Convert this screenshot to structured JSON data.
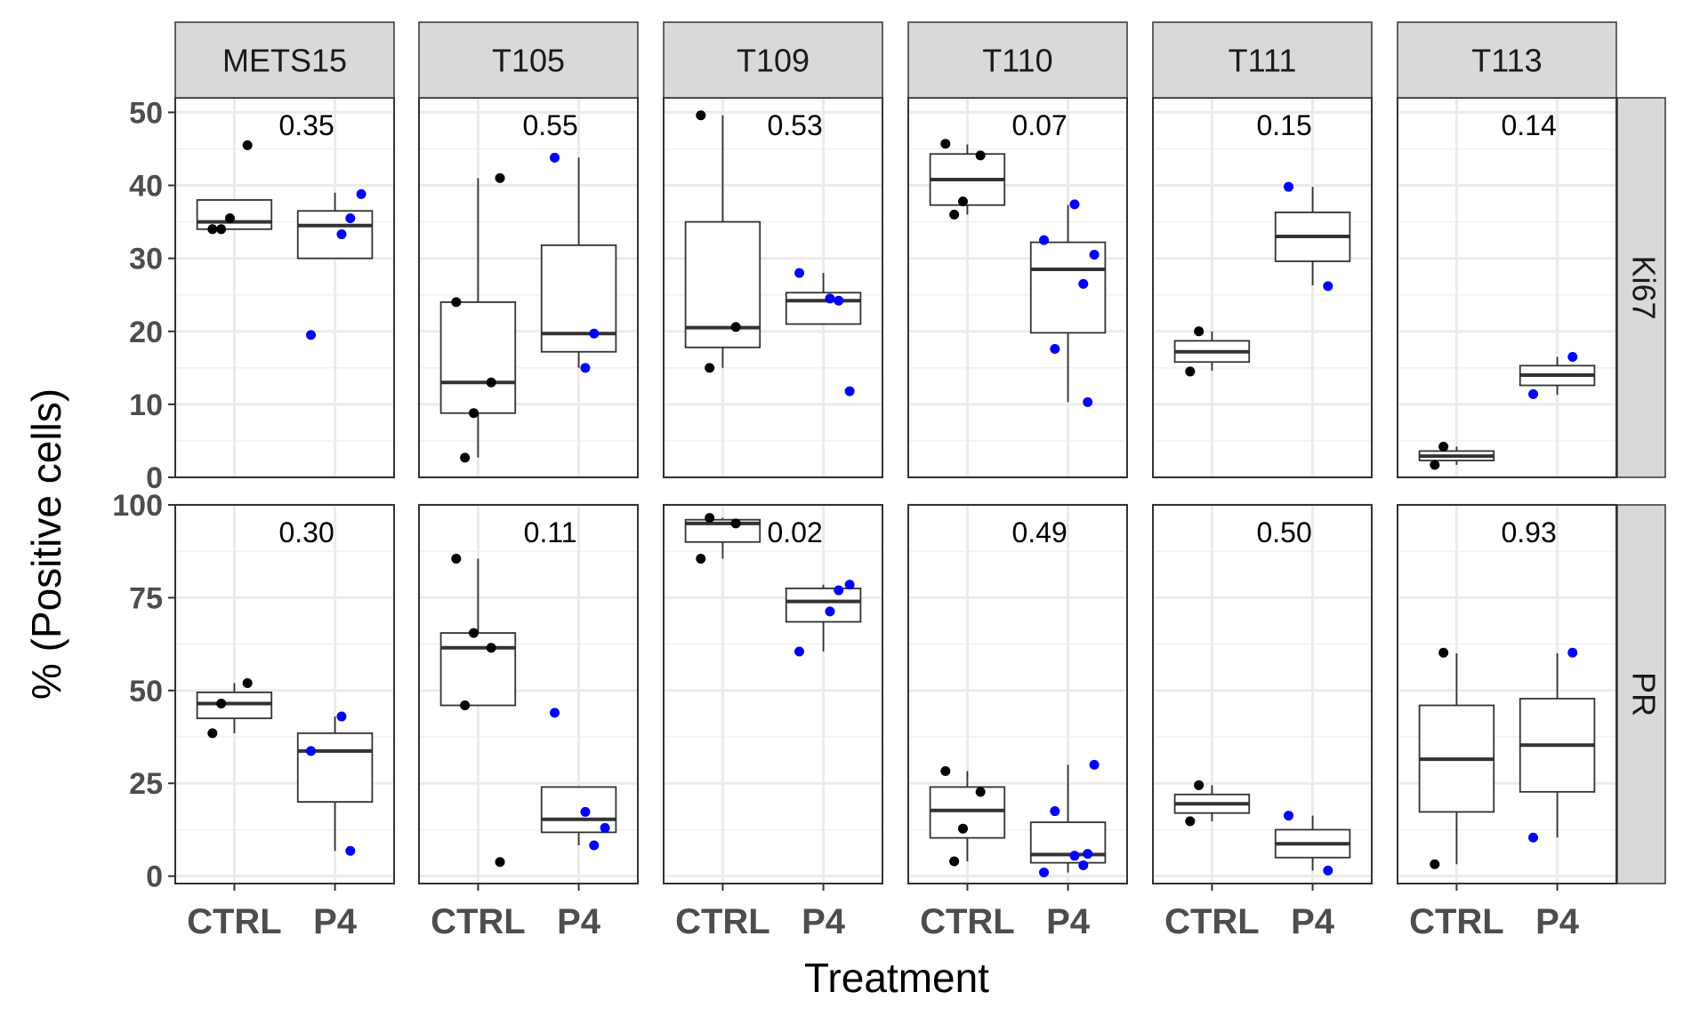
{
  "chart_data": {
    "type": "boxplot",
    "xlabel": "Treatment",
    "ylabel": "% (Positive cells)",
    "categories": [
      "CTRL",
      "P4"
    ],
    "columns": [
      "METS15",
      "T105",
      "T109",
      "T110",
      "T111",
      "T113"
    ],
    "rows": [
      {
        "name": "Ki67",
        "ylim": [
          0,
          52
        ],
        "yticks": [
          0,
          10,
          20,
          30,
          40,
          50
        ]
      },
      {
        "name": "PR",
        "ylim": [
          -2,
          100
        ],
        "yticks": [
          0,
          25,
          50,
          75,
          100
        ]
      }
    ],
    "panels": [
      {
        "row": "Ki67",
        "col": "METS15",
        "p_value": "0.35",
        "groups": [
          {
            "cat": "CTRL",
            "q1": 34,
            "median": 35,
            "q3": 38,
            "lo": 34,
            "hi": 38,
            "points": [
              34,
              34,
              45.5,
              35.5
            ]
          },
          {
            "cat": "P4",
            "q1": 30,
            "median": 34.5,
            "q3": 36.5,
            "lo": 30,
            "hi": 39,
            "points": [
              19.5,
              35.5,
              33.3,
              38.8
            ]
          }
        ]
      },
      {
        "row": "Ki67",
        "col": "T105",
        "p_value": "0.55",
        "groups": [
          {
            "cat": "CTRL",
            "q1": 8.8,
            "median": 13,
            "q3": 24,
            "lo": 2.7,
            "hi": 41,
            "points": [
              24,
              2.7,
              13,
              8.8,
              41
            ]
          },
          {
            "cat": "P4",
            "q1": 17.2,
            "median": 19.7,
            "q3": 31.8,
            "lo": 15,
            "hi": 43.8,
            "points": [
              43.8,
              19.7,
              15
            ]
          }
        ]
      },
      {
        "row": "Ki67",
        "col": "T109",
        "p_value": "0.53",
        "groups": [
          {
            "cat": "CTRL",
            "q1": 17.8,
            "median": 20.5,
            "q3": 35,
            "lo": 15,
            "hi": 49.6,
            "points": [
              49.6,
              15,
              20.6
            ]
          },
          {
            "cat": "P4",
            "q1": 21,
            "median": 24.2,
            "q3": 25.3,
            "lo": 21,
            "hi": 28,
            "points": [
              28,
              24.2,
              24.5,
              11.8
            ]
          }
        ]
      },
      {
        "row": "Ki67",
        "col": "T110",
        "p_value": "0.07",
        "groups": [
          {
            "cat": "CTRL",
            "q1": 37.3,
            "median": 40.8,
            "q3": 44.3,
            "lo": 36,
            "hi": 45.6,
            "points": [
              45.7,
              36,
              44.1,
              37.8
            ]
          },
          {
            "cat": "P4",
            "q1": 19.8,
            "median": 28.5,
            "q3": 32.2,
            "lo": 10.3,
            "hi": 37.3,
            "points": [
              32.5,
              26.5,
              37.4,
              30.5,
              17.6,
              10.3
            ]
          }
        ]
      },
      {
        "row": "Ki67",
        "col": "T111",
        "p_value": "0.15",
        "groups": [
          {
            "cat": "CTRL",
            "q1": 15.8,
            "median": 17.2,
            "q3": 18.7,
            "lo": 14.6,
            "hi": 20,
            "points": [
              14.5,
              20
            ]
          },
          {
            "cat": "P4",
            "q1": 29.6,
            "median": 33,
            "q3": 36.3,
            "lo": 26.3,
            "hi": 39.8,
            "points": [
              39.8,
              26.2
            ]
          }
        ]
      },
      {
        "row": "Ki67",
        "col": "T113",
        "p_value": "0.14",
        "groups": [
          {
            "cat": "CTRL",
            "q1": 2.3,
            "median": 2.9,
            "q3": 3.6,
            "lo": 1.7,
            "hi": 4.2,
            "points": [
              1.7,
              4.2
            ]
          },
          {
            "cat": "P4",
            "q1": 12.6,
            "median": 14,
            "q3": 15.3,
            "lo": 11.3,
            "hi": 16.5,
            "points": [
              11.4,
              16.5
            ]
          }
        ]
      },
      {
        "row": "PR",
        "col": "METS15",
        "p_value": "0.30",
        "groups": [
          {
            "cat": "CTRL",
            "q1": 42.5,
            "median": 46.5,
            "q3": 49.5,
            "lo": 38.5,
            "hi": 52,
            "points": [
              38.5,
              46.5,
              52
            ]
          },
          {
            "cat": "P4",
            "q1": 20,
            "median": 33.7,
            "q3": 38.5,
            "lo": 6.8,
            "hi": 43,
            "points": [
              33.7,
              6.8,
              43
            ]
          }
        ]
      },
      {
        "row": "PR",
        "col": "T105",
        "p_value": "0.11",
        "groups": [
          {
            "cat": "CTRL",
            "q1": 46,
            "median": 61.5,
            "q3": 65.5,
            "lo": 46,
            "hi": 85.5,
            "points": [
              85.5,
              46,
              61.5,
              65.5,
              3.8
            ]
          },
          {
            "cat": "P4",
            "q1": 11.8,
            "median": 15.3,
            "q3": 24,
            "lo": 8.3,
            "hi": 24,
            "points": [
              44,
              8.3,
              17.3,
              13
            ]
          }
        ]
      },
      {
        "row": "PR",
        "col": "T109",
        "p_value": "0.02",
        "groups": [
          {
            "cat": "CTRL",
            "q1": 90,
            "median": 95,
            "q3": 96,
            "lo": 85.5,
            "hi": 96.5,
            "points": [
              85.5,
              96.5,
              95
            ]
          },
          {
            "cat": "P4",
            "q1": 68.5,
            "median": 74,
            "q3": 77.5,
            "lo": 60.5,
            "hi": 78.5,
            "points": [
              60.5,
              77,
              71.3,
              78.5
            ]
          }
        ]
      },
      {
        "row": "PR",
        "col": "T110",
        "p_value": "0.49",
        "groups": [
          {
            "cat": "CTRL",
            "q1": 10.3,
            "median": 17.7,
            "q3": 24,
            "lo": 4,
            "hi": 28.3,
            "points": [
              28.3,
              4,
              22.7,
              12.8
            ]
          },
          {
            "cat": "P4",
            "q1": 3.6,
            "median": 5.8,
            "q3": 14.5,
            "lo": 1,
            "hi": 30,
            "points": [
              1,
              2.9,
              5.5,
              30,
              17.5,
              6
            ]
          }
        ]
      },
      {
        "row": "PR",
        "col": "T111",
        "p_value": "0.50",
        "groups": [
          {
            "cat": "CTRL",
            "q1": 17,
            "median": 19.5,
            "q3": 22,
            "lo": 14.8,
            "hi": 24.5,
            "points": [
              14.8,
              24.5
            ]
          },
          {
            "cat": "P4",
            "q1": 5,
            "median": 8.7,
            "q3": 12.5,
            "lo": 1.5,
            "hi": 16.3,
            "points": [
              16.3,
              1.5
            ]
          }
        ]
      },
      {
        "row": "PR",
        "col": "T113",
        "p_value": "0.93",
        "groups": [
          {
            "cat": "CTRL",
            "q1": 17.3,
            "median": 31.5,
            "q3": 46,
            "lo": 3.2,
            "hi": 60,
            "points": [
              3.2,
              60.2
            ]
          },
          {
            "cat": "P4",
            "q1": 22.7,
            "median": 35.3,
            "q3": 47.8,
            "lo": 10.4,
            "hi": 60,
            "points": [
              10.4,
              60.2
            ]
          }
        ]
      }
    ],
    "point_colors": {
      "CTRL": "#000000",
      "P4": "#0000ff"
    },
    "strip_fill": "#d9d9d9",
    "grid": true
  }
}
